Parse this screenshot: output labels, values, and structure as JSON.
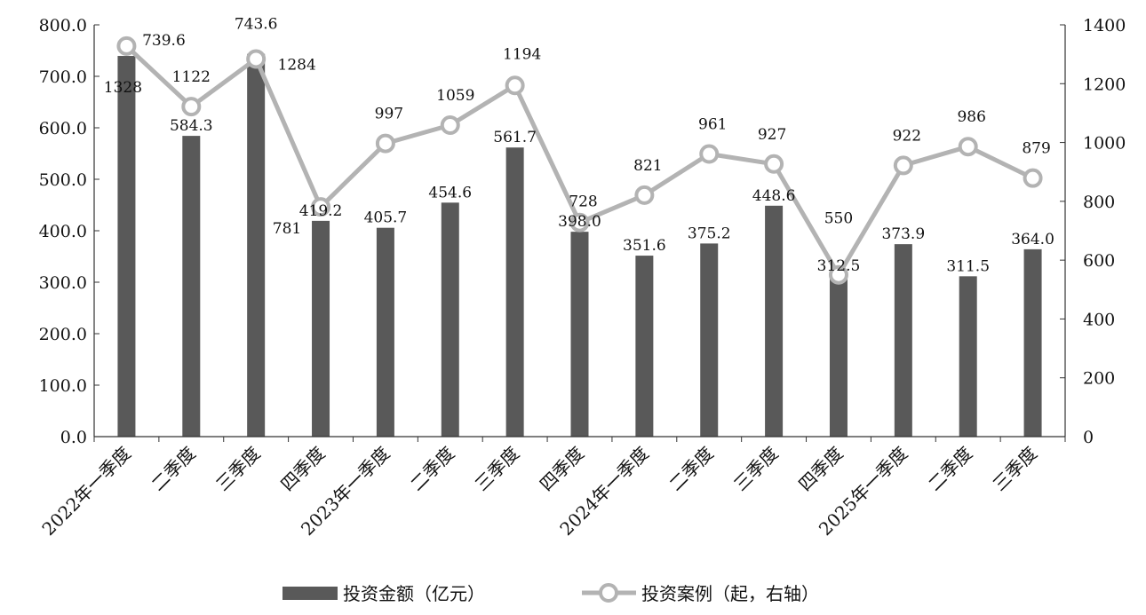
{
  "chart_data": {
    "type": "bar",
    "categories": [
      "2022年一季度",
      "二季度",
      "三季度",
      "四季度",
      "2023年一季度",
      "二季度",
      "三季度",
      "四季度",
      "2024年一季度",
      "二季度",
      "三季度",
      "四季度",
      "2025年一季度",
      "二季度",
      "三季度"
    ],
    "series": [
      {
        "name": "投资金额（亿元）",
        "type": "bar",
        "axis": "left",
        "values": [
          739.6,
          584.3,
          743.6,
          419.2,
          405.7,
          454.6,
          561.7,
          398.0,
          351.6,
          375.2,
          448.6,
          312.5,
          373.9,
          311.5,
          364.0
        ],
        "color": "#595959"
      },
      {
        "name": "投资案例（起，右轴）",
        "type": "line",
        "axis": "right",
        "values": [
          1328,
          1122,
          1284,
          781,
          997,
          1059,
          1194,
          728,
          821,
          961,
          927,
          550,
          922,
          986,
          879
        ],
        "color": "#b3b3b3"
      }
    ],
    "bar_labels": [
      "739.6",
      "584.3",
      "743.6",
      "419.2",
      "405.7",
      "454.6",
      "561.7",
      "398.0",
      "351.6",
      "375.2",
      "448.6",
      "312.5",
      "373.9",
      "311.5",
      "364.0"
    ],
    "line_labels": [
      "1328",
      "1122",
      "1284",
      "781",
      "997",
      "1059",
      "1194",
      "728",
      "821",
      "961",
      "927",
      "550",
      "922",
      "986",
      "879"
    ],
    "y_left": {
      "range": [
        0,
        800
      ],
      "ticks": [
        "0.0",
        "100.0",
        "200.0",
        "300.0",
        "400.0",
        "500.0",
        "600.0",
        "700.0",
        "800.0"
      ]
    },
    "y_right": {
      "range": [
        0,
        1400
      ],
      "ticks": [
        "0",
        "200",
        "400",
        "600",
        "800",
        "1000",
        "1200",
        "1400"
      ]
    },
    "grid": false,
    "legend": "bottom"
  }
}
